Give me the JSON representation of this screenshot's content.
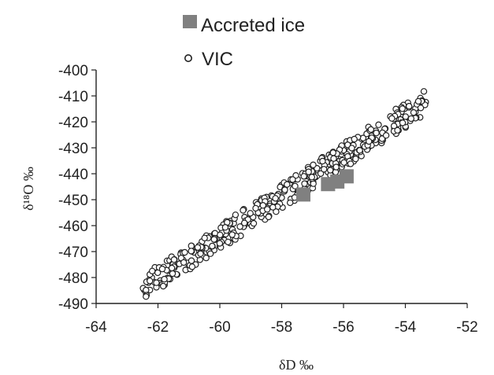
{
  "chart_data": {
    "type": "scatter",
    "xlabel": "δD ‰",
    "ylabel": "δ¹⁸O ‰",
    "xlim": [
      -64,
      -52
    ],
    "ylim": [
      -490,
      -400
    ],
    "x_ticks": [
      -64,
      -62,
      -60,
      -58,
      -56,
      -54,
      -52
    ],
    "y_ticks": [
      -400,
      -410,
      -420,
      -430,
      -440,
      -450,
      -460,
      -470,
      -480,
      -490
    ],
    "legend_position": "top-center",
    "series": [
      {
        "name": "Accreted ice",
        "marker": "square",
        "color": "#808080",
        "points": [
          {
            "x": -57.3,
            "y": -448
          },
          {
            "x": -56.5,
            "y": -444
          },
          {
            "x": -56.2,
            "y": -443
          },
          {
            "x": -55.9,
            "y": -441
          }
        ]
      },
      {
        "name": "VIC",
        "marker": "circle",
        "color": "#ffffff",
        "trend": {
          "x_start": -62.5,
          "y_start": -484,
          "x_end": -53.3,
          "y_end": -412,
          "spread": 2.2,
          "count": 420
        }
      }
    ]
  }
}
